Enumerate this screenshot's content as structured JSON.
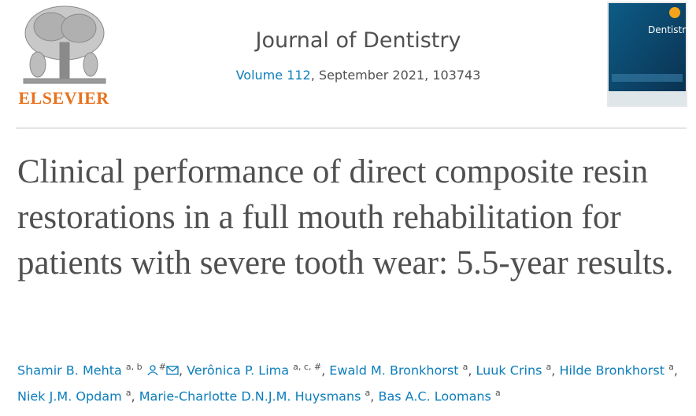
{
  "header": {
    "publisher": "ELSEVIER",
    "journal": "Journal of Dentistry",
    "volume": "Volume 112",
    "issue_info": ", September 2021, 103743",
    "cover_title": "Dentistry"
  },
  "article": {
    "title": "Clinical performance of direct composite resin restorations in a full mouth rehabilitation for patients with severe tooth wear: 5.5-year results.",
    "separator": ", ",
    "authors": [
      {
        "name": "Shamir B. Mehta",
        "sup": "a, b",
        "note": "#"
      },
      {
        "name": "Verônica P. Lima",
        "sup": "a, c, #"
      },
      {
        "name": "Ewald M. Bronkhorst",
        "sup": "a"
      },
      {
        "name": "Luuk Crins",
        "sup": "a"
      },
      {
        "name": "Hilde Bronkhorst",
        "sup": "a"
      },
      {
        "name": "Niek J.M. Opdam",
        "sup": "a"
      },
      {
        "name": "Marie-Charlotte D.N.J.M. Huysmans",
        "sup": "a"
      },
      {
        "name": "Bas A.C. Loomans",
        "sup": "a"
      }
    ]
  }
}
